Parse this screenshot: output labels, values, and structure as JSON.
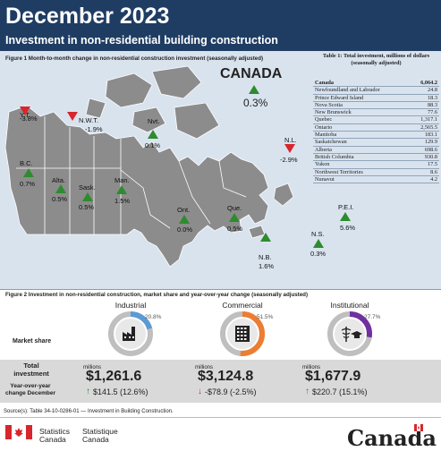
{
  "header": {
    "title": "December 2023",
    "subtitle": "Investment in non-residential building construction"
  },
  "figure1": {
    "title": "Figure 1  Month-to-month change in non-residential construction investment (seasonally adjusted)",
    "canada": {
      "label": "CANADA",
      "value": "0.3%"
    },
    "regions": [
      {
        "name": "Y.T.",
        "value": "-3.8%",
        "dir": "down"
      },
      {
        "name": "N.W.T.",
        "value": "-1.9%",
        "dir": "down"
      },
      {
        "name": "Nvt.",
        "value": "0.1%",
        "dir": "up"
      },
      {
        "name": "B.C.",
        "value": "0.7%",
        "dir": "up"
      },
      {
        "name": "Alta.",
        "value": "0.5%",
        "dir": "up"
      },
      {
        "name": "Sask.",
        "value": "0.5%",
        "dir": "up"
      },
      {
        "name": "Man.",
        "value": "1.5%",
        "dir": "up"
      },
      {
        "name": "Ont.",
        "value": "0.0%",
        "dir": "up"
      },
      {
        "name": "Que.",
        "value": "0.5%",
        "dir": "up"
      },
      {
        "name": "N.L.",
        "value": "-2.9%",
        "dir": "down"
      },
      {
        "name": "P.E.I.",
        "value": "5.6%",
        "dir": "up"
      },
      {
        "name": "N.S.",
        "value": "0.3%",
        "dir": "up"
      },
      {
        "name": "N.B.",
        "value": "1.6%",
        "dir": "up"
      }
    ],
    "colors": {
      "up": "#2e8b2e",
      "down": "#d7262c",
      "land": "#8c8c8c",
      "water": "#d9e3ee"
    }
  },
  "table1": {
    "title": "Table 1: Total investment, millions of dollars (seasonally adjusted)",
    "rows": [
      {
        "name": "Canada",
        "value": "6,064.2"
      },
      {
        "name": "Newfoundland and Labrador",
        "value": "24.8"
      },
      {
        "name": "Prince Edward Island",
        "value": "18.3"
      },
      {
        "name": "Nova Scotia",
        "value": "88.3"
      },
      {
        "name": "New Brunswick",
        "value": "77.6"
      },
      {
        "name": "Quebec",
        "value": "1,317.1"
      },
      {
        "name": "Ontario",
        "value": "2,565.5"
      },
      {
        "name": "Manitoba",
        "value": "183.1"
      },
      {
        "name": "Saskatchewan",
        "value": "129.9"
      },
      {
        "name": "Alberta",
        "value": "698.6"
      },
      {
        "name": "British Columbia",
        "value": "930.8"
      },
      {
        "name": "Yukon",
        "value": "17.5"
      },
      {
        "name": "Northwest Territories",
        "value": "8.6"
      },
      {
        "name": "Nunavut",
        "value": "4.2"
      }
    ]
  },
  "figure2": {
    "title": "Figure 2  Investment in non-residential construction, market share and year-over-year change (seasonally adjusted)",
    "row_labels": {
      "market_share": "Market share",
      "total": "Total investment",
      "yoy": "Year-over-year change December"
    },
    "unit": "millions",
    "sectors": [
      {
        "name": "Industrial",
        "share": 20.8,
        "share_label": "20.8%",
        "amount": "$1,261.6",
        "change": "$141.5 (12.6%)",
        "dir": "up",
        "color": "#5b9bd5",
        "icon": "factory-icon"
      },
      {
        "name": "Commercial",
        "share": 51.5,
        "share_label": "51.5%",
        "amount": "$3,124.8",
        "change": "-$78.9 (-2.5%)",
        "dir": "down",
        "color": "#ed7d31",
        "icon": "office-building-icon"
      },
      {
        "name": "Institutional",
        "share": 27.7,
        "share_label": "27.7%",
        "amount": "$1,677.9",
        "change": "$220.7 (15.1%)",
        "dir": "up",
        "color": "#7030a0",
        "icon": "caduceus-graduation-cap-icon"
      }
    ]
  },
  "footer": {
    "source": "Source(s): Table 34-10-0286-01 — Investment in Building Construction.",
    "org_en_1": "Statistics",
    "org_en_2": "Canada",
    "org_fr_1": "Statistique",
    "org_fr_2": "Canada",
    "wordmark": "Canada"
  }
}
